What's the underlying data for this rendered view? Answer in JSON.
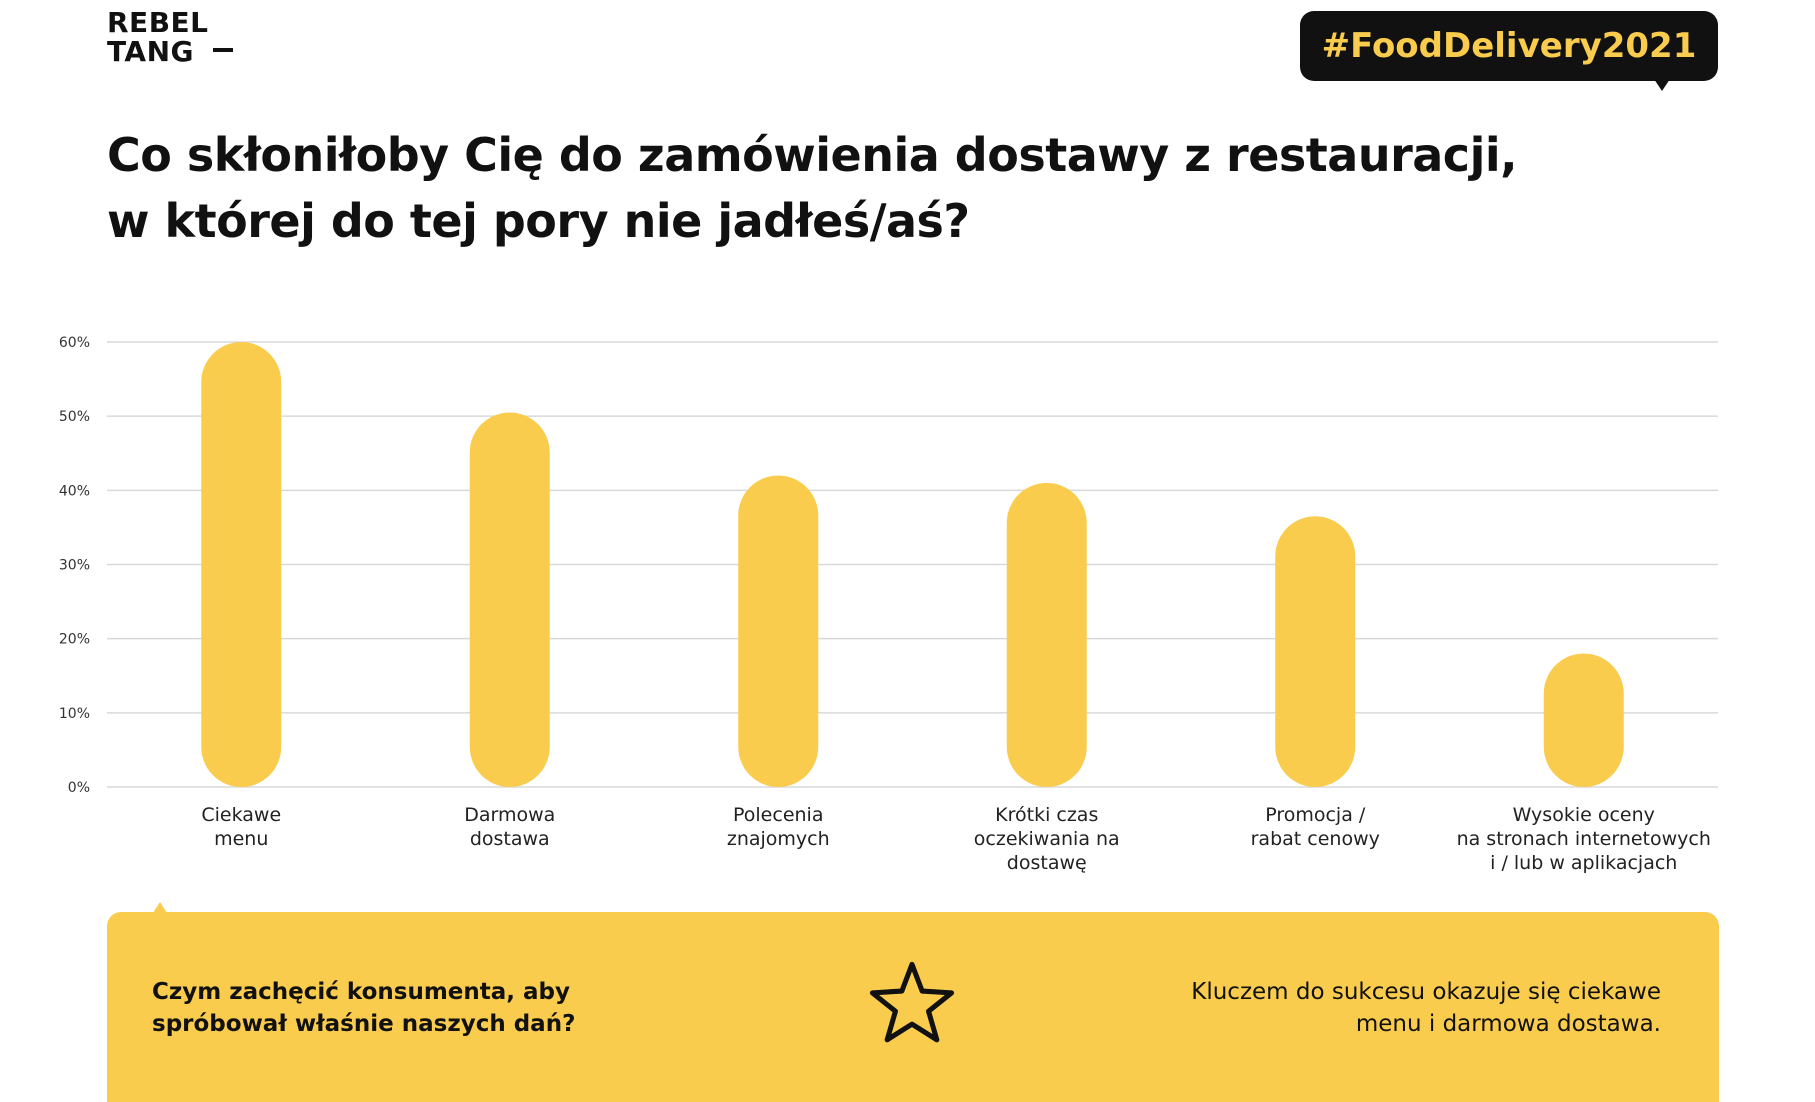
{
  "brand": {
    "line1": "REBEL",
    "line2": "TANG"
  },
  "hashtag": "#FoodDelivery2021",
  "title": {
    "line1": "Co skłoniłoby Cię do zamówienia dostawy z restauracji,",
    "line2": "w której do tej pory nie jadłeś/aś?"
  },
  "colors": {
    "accent": "#FACC4E",
    "dark": "#111111",
    "grid": "#d9d9d9"
  },
  "chart_data": {
    "type": "bar",
    "categories": [
      [
        "Ciekawe",
        "menu"
      ],
      [
        "Darmowa",
        "dostawa"
      ],
      [
        "Polecenia",
        "znajomych"
      ],
      [
        "Krótki czas",
        "oczekiwania na",
        "dostawę"
      ],
      [
        "Promocja /",
        "rabat cenowy"
      ],
      [
        "Wysokie oceny",
        "na stronach internetowych",
        "i / lub w aplikacjach"
      ]
    ],
    "values": [
      60,
      50.5,
      42,
      41,
      36.5,
      18
    ],
    "ylim": [
      0,
      60
    ],
    "yticks": [
      "0%",
      "10%",
      "20%",
      "30%",
      "40%",
      "50%",
      "60%"
    ],
    "grid": true,
    "unit": "%"
  },
  "callout": {
    "question_line1": "Czym zachęcić konsumenta, aby",
    "question_line2": "spróbował właśnie naszych dań?",
    "icon": "star-icon",
    "answer_line1": "Kluczem do sukcesu okazuje się ciekawe",
    "answer_line2": "menu i darmowa dostawa."
  }
}
